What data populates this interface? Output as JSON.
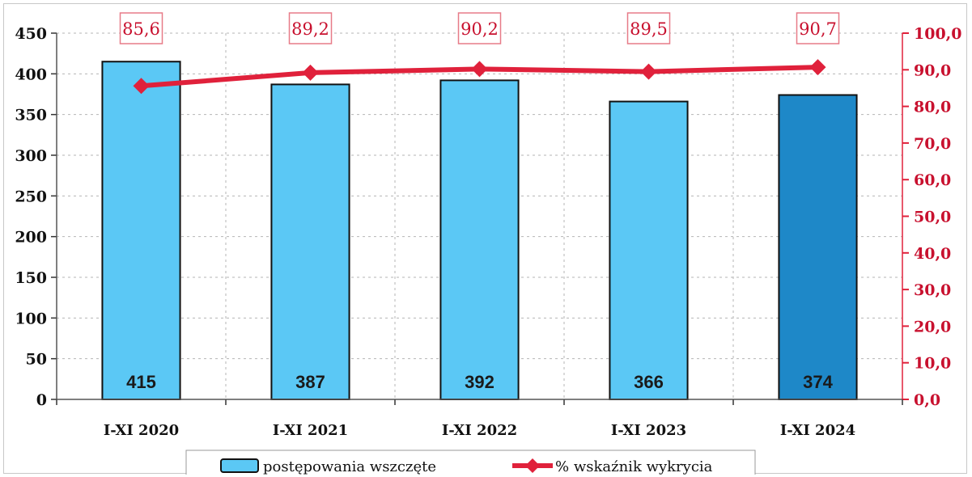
{
  "chart_data": {
    "type": "bar",
    "categories": [
      "I-XI 2020",
      "I-XI 2021",
      "I-XI 2022",
      "I-XI 2023",
      "I-XI 2024"
    ],
    "series": [
      {
        "name": "postępowania wszczęte",
        "type": "bar",
        "axis": "left",
        "values": [
          415,
          387,
          392,
          366,
          374
        ],
        "data_labels": [
          "415",
          "387",
          "392",
          "366",
          "374"
        ],
        "color": "#5bc8f5",
        "highlight_color": "#1e88c8",
        "highlight_index": 4
      },
      {
        "name": "% wskaźnik wykrycia",
        "type": "line",
        "axis": "right",
        "values": [
          85.6,
          89.2,
          90.2,
          89.5,
          90.7
        ],
        "data_labels": [
          "85,6",
          "89,2",
          "90,2",
          "89,5",
          "90,7"
        ],
        "color": "#e0213b"
      }
    ],
    "ylim": [
      0,
      450
    ],
    "y_ticks": [
      "0",
      "50",
      "100",
      "150",
      "200",
      "250",
      "300",
      "350",
      "400",
      "450"
    ],
    "y2lim": [
      0,
      100
    ],
    "y2_ticks": [
      "0,0",
      "10,0",
      "20,0",
      "30,0",
      "40,0",
      "50,0",
      "60,0",
      "70,0",
      "80,0",
      "90,0",
      "100,0"
    ],
    "grid": true,
    "legend_position": "bottom"
  }
}
